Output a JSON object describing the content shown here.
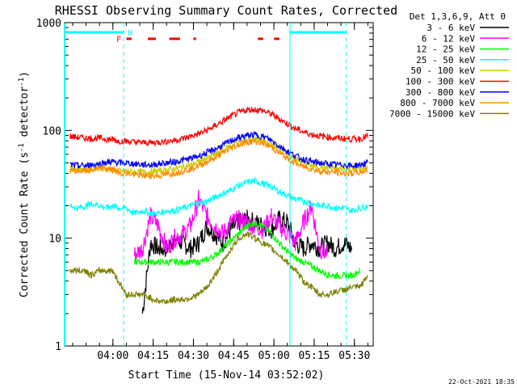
{
  "chart_data": {
    "type": "line",
    "title": "RHESSI Observing Summary Count Rates, Corrected",
    "xlabel": "Start Time (15-Nov-14 03:52:02)",
    "ylabel": "Corrected Count Rate (s⁻¹ detector⁻¹)",
    "ylabel_main": "Corrected Count Rate (s",
    "ylabel_sup1": "-1",
    "ylabel_mid": " detector",
    "ylabel_sup2": "-1",
    "ylabel_end": ")",
    "yscale": "log",
    "ylim": [
      1,
      1000
    ],
    "yticks": [
      {
        "v": 1,
        "label": "1"
      },
      {
        "v": 10,
        "label": "10"
      },
      {
        "v": 100,
        "label": "100"
      },
      {
        "v": 1000,
        "label": "1000"
      }
    ],
    "xlim": [
      -10,
      105
    ],
    "xticks": [
      {
        "v": 8,
        "label": "04:00"
      },
      {
        "v": 23,
        "label": "04:15"
      },
      {
        "v": 38,
        "label": "04:30"
      },
      {
        "v": 53,
        "label": "04:45"
      },
      {
        "v": 68,
        "label": "05:00"
      },
      {
        "v": 83,
        "label": "05:15"
      },
      {
        "v": 98,
        "label": "05:30"
      }
    ],
    "legend_title": "Det 1,3,6,9, Att 0",
    "legend_placement": "outside-right",
    "series": [
      {
        "name": "3 - 6 keV",
        "color": "#000000",
        "x": [
          -8,
          -5,
          -2,
          0,
          3,
          6,
          8,
          10,
          13,
          16,
          19,
          22,
          25,
          28,
          31,
          34,
          37,
          40,
          43,
          46,
          49,
          52,
          55,
          58,
          61,
          64,
          67,
          70,
          73,
          76,
          79,
          82,
          85,
          88,
          91,
          94,
          97
        ],
        "y": [
          null,
          null,
          null,
          null,
          null,
          null,
          null,
          null,
          null,
          null,
          2,
          9,
          8,
          8,
          10,
          9,
          8,
          9,
          13,
          11,
          9,
          12,
          14,
          15,
          14,
          13,
          12,
          15,
          14,
          9,
          8,
          9,
          8,
          9,
          8,
          9,
          8
        ]
      },
      {
        "name": "6 - 12 keV",
        "color": "#ff00ff",
        "x": [
          16,
          19,
          22,
          25,
          28,
          31,
          34,
          37,
          40,
          43,
          46,
          49,
          52,
          55,
          58,
          61,
          64,
          67,
          70,
          73,
          76,
          79,
          82,
          85,
          88,
          91,
          94
        ],
        "y": [
          7,
          8,
          16,
          13,
          8,
          10,
          11,
          13,
          23,
          16,
          13,
          11,
          14,
          15,
          14,
          13,
          12,
          16,
          13,
          11,
          9,
          14,
          20,
          8,
          7,
          null,
          null
        ]
      },
      {
        "name": "12 - 25 keV",
        "color": "#00ff00",
        "x": [
          16,
          19,
          22,
          25,
          28,
          31,
          34,
          37,
          40,
          43,
          46,
          49,
          52,
          55,
          58,
          61,
          64,
          67,
          70,
          73,
          76,
          79,
          82,
          85,
          88,
          91,
          94,
          97,
          100
        ],
        "y": [
          6,
          6,
          6,
          6,
          6,
          6,
          6,
          6,
          6,
          6.3,
          7,
          8,
          9.5,
          11,
          13,
          14,
          13,
          11,
          9,
          7.5,
          6.5,
          6,
          5.5,
          5,
          4.6,
          4.5,
          4.5,
          4.5,
          5
        ]
      },
      {
        "name": "25 - 50 keV",
        "color": "#00ffff",
        "x": [
          -8,
          -5,
          -2,
          0,
          3,
          6,
          8,
          10,
          13,
          16,
          19,
          22,
          25,
          28,
          31,
          34,
          37,
          40,
          43,
          46,
          49,
          52,
          55,
          58,
          61,
          64,
          67,
          70,
          73,
          76,
          79,
          82,
          85,
          88,
          91,
          94,
          97,
          100,
          103
        ],
        "y": [
          20,
          19,
          20,
          21,
          20,
          19,
          20,
          19,
          19,
          17,
          18,
          17,
          17,
          18,
          18,
          19,
          20,
          21,
          22,
          24,
          26,
          28,
          31,
          33,
          34,
          32,
          30,
          27,
          25,
          23,
          22,
          21,
          20,
          20,
          19,
          19,
          18,
          19,
          20
        ]
      },
      {
        "name": "50 - 100 keV",
        "color": "#cccc00",
        "x": [
          -8,
          -5,
          -2,
          0,
          3,
          6,
          8,
          10,
          13,
          16,
          19,
          22,
          25,
          28,
          31,
          34,
          37,
          40,
          43,
          46,
          49,
          52,
          55,
          58,
          61,
          64,
          67,
          70,
          73,
          76,
          79,
          82,
          85,
          88,
          91,
          94,
          97,
          100,
          103
        ],
        "y": [
          44,
          44,
          43,
          44,
          45,
          44,
          43,
          42,
          42,
          41,
          41,
          41,
          42,
          43,
          44,
          46,
          48,
          51,
          55,
          60,
          66,
          72,
          78,
          82,
          83,
          80,
          74,
          66,
          60,
          54,
          50,
          47,
          46,
          45,
          44,
          44,
          43,
          44,
          46
        ]
      },
      {
        "name": "100 - 300 keV",
        "color": "#ff0000",
        "x": [
          -8,
          -5,
          -2,
          0,
          3,
          6,
          8,
          10,
          13,
          16,
          19,
          22,
          25,
          28,
          31,
          34,
          37,
          40,
          43,
          46,
          49,
          52,
          55,
          58,
          61,
          64,
          67,
          70,
          73,
          76,
          79,
          82,
          85,
          88,
          91,
          94,
          97,
          100,
          103
        ],
        "y": [
          88,
          86,
          85,
          84,
          85,
          83,
          82,
          80,
          79,
          78,
          77,
          77,
          78,
          79,
          81,
          84,
          88,
          93,
          100,
          110,
          122,
          135,
          147,
          155,
          157,
          152,
          142,
          128,
          115,
          104,
          97,
          92,
          89,
          87,
          85,
          84,
          83,
          84,
          88
        ]
      },
      {
        "name": "300 - 800 keV",
        "color": "#0000ff",
        "x": [
          -8,
          -5,
          -2,
          0,
          3,
          6,
          8,
          10,
          13,
          16,
          19,
          22,
          25,
          28,
          31,
          34,
          37,
          40,
          43,
          46,
          49,
          52,
          55,
          58,
          61,
          64,
          67,
          70,
          73,
          76,
          79,
          82,
          85,
          88,
          91,
          94,
          97,
          100,
          103
        ],
        "y": [
          48,
          47,
          47,
          48,
          49,
          51,
          51,
          50,
          50,
          49,
          48,
          48,
          49,
          50,
          51,
          53,
          55,
          58,
          62,
          67,
          73,
          80,
          86,
          90,
          91,
          88,
          81,
          72,
          64,
          58,
          54,
          51,
          50,
          49,
          48,
          48,
          47,
          48,
          50
        ]
      },
      {
        "name": "800 - 7000 keV",
        "color": "#ff8c00",
        "x": [
          -8,
          -5,
          -2,
          0,
          3,
          6,
          8,
          10,
          13,
          16,
          19,
          22,
          25,
          28,
          31,
          34,
          37,
          40,
          43,
          46,
          49,
          52,
          55,
          58,
          61,
          64,
          67,
          70,
          73,
          76,
          79,
          82,
          85,
          88,
          91,
          94,
          97,
          100,
          103
        ],
        "y": [
          43,
          42,
          42,
          43,
          44,
          44,
          43,
          41,
          40,
          39,
          38,
          38,
          38,
          39,
          40,
          42,
          44,
          47,
          51,
          56,
          62,
          68,
          74,
          78,
          79,
          76,
          70,
          62,
          55,
          50,
          46,
          44,
          42,
          41,
          41,
          40,
          40,
          41,
          43
        ]
      },
      {
        "name": "7000 - 15000 keV",
        "color": "#808000",
        "x": [
          -8,
          -5,
          -2,
          0,
          3,
          6,
          8,
          10,
          13,
          16,
          19,
          22,
          25,
          28,
          31,
          34,
          37,
          40,
          43,
          46,
          49,
          52,
          55,
          58,
          61,
          64,
          67,
          70,
          73,
          76,
          79,
          82,
          85,
          88,
          91,
          94,
          97,
          100,
          103
        ],
        "y": [
          5,
          5,
          5,
          4.5,
          5,
          5,
          5,
          4,
          3,
          3,
          3,
          2.8,
          2.6,
          2.6,
          2.7,
          2.7,
          2.8,
          3,
          3.5,
          4.5,
          6,
          8,
          10,
          11,
          10,
          9,
          8,
          7,
          6,
          5,
          4,
          3.5,
          3,
          3,
          3.2,
          3.3,
          3.5,
          3.5,
          4.5
        ]
      }
    ],
    "annotations": {
      "flags": [
        {
          "label": "F",
          "color": "#ff0000"
        },
        {
          "label": "N",
          "color": "#00ffff"
        }
      ],
      "attenuator_bar_color": "#00ffff",
      "flare_flag_color": "#ff0000",
      "vlines_color": "#00ffff"
    },
    "timestamp": "22-Oct-2021 18:35"
  }
}
